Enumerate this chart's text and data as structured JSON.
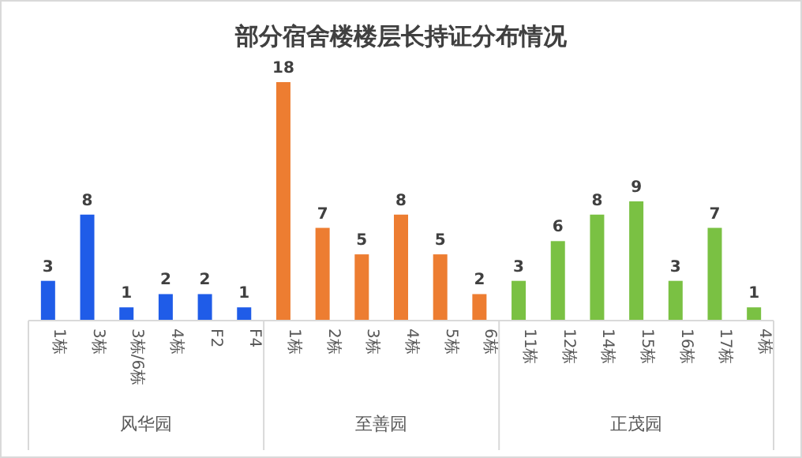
{
  "chart_data": {
    "type": "bar",
    "title": "部分宿舍楼楼层长持证分布情况",
    "categories": [
      "1栋",
      "3栋",
      "3栋/6栋",
      "4栋",
      "F2",
      "F4",
      "1栋",
      "2栋",
      "3栋",
      "4栋",
      "5栋",
      "6栋",
      "11栋",
      "12栋",
      "14栋",
      "15栋",
      "16栋",
      "17栋",
      "4栋"
    ],
    "series": [
      {
        "color": "#1f5ce8",
        "values": [
          3,
          8,
          1,
          2,
          2,
          1,
          null,
          null,
          null,
          null,
          null,
          null,
          null,
          null,
          null,
          null,
          null,
          null,
          null
        ]
      },
      {
        "color": "#ed7d31",
        "values": [
          null,
          null,
          null,
          null,
          null,
          null,
          18,
          7,
          5,
          8,
          5,
          2,
          null,
          null,
          null,
          null,
          null,
          null,
          null
        ]
      },
      {
        "color": "#7ac143",
        "values": [
          null,
          null,
          null,
          null,
          null,
          null,
          null,
          null,
          null,
          null,
          null,
          null,
          3,
          6,
          8,
          9,
          3,
          7,
          1
        ]
      }
    ],
    "annotations": [
      "风华园",
      "至善园",
      "正茂园"
    ],
    "data_labels": true
  }
}
